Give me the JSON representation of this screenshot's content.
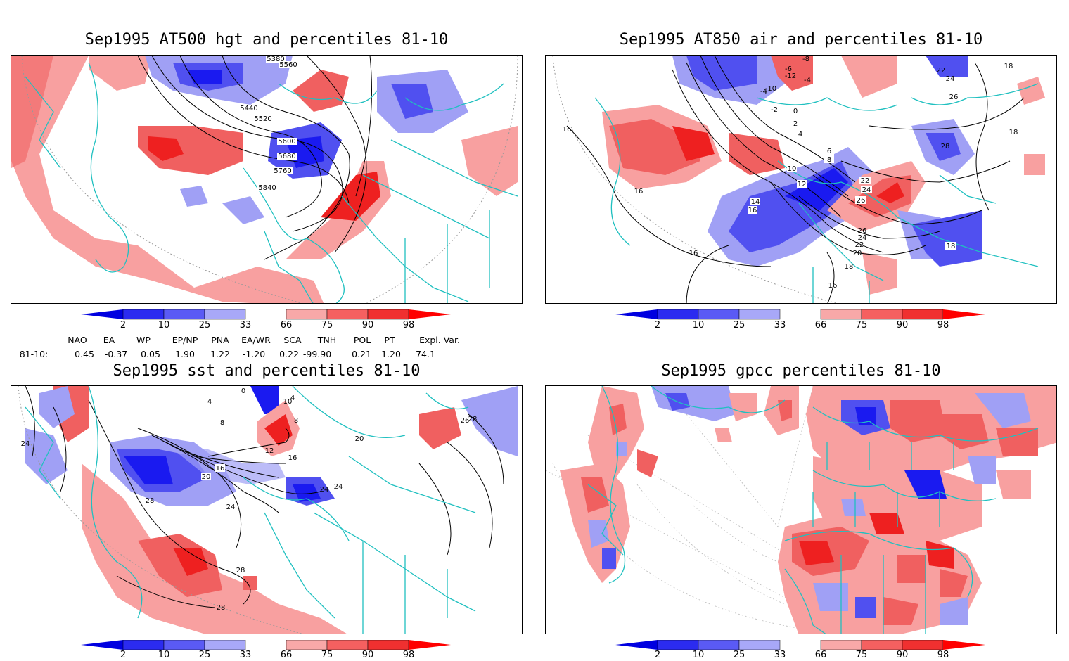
{
  "panels": [
    {
      "title": "Sep1995 AT500 hgt and percentiles 81-10",
      "contour_labels": [
        "5380",
        "5560",
        "5440",
        "5520",
        "5600",
        "5680",
        "5760",
        "5840"
      ]
    },
    {
      "title": "Sep1995 AT850 air and percentiles 81-10",
      "contour_labels": [
        "-8",
        "-6",
        "-4",
        "-12",
        "-10",
        "-4",
        "-2",
        "0",
        "2",
        "4",
        "6",
        "8",
        "10",
        "12",
        "14",
        "16",
        "16",
        "16",
        "16",
        "16",
        "18",
        "18",
        "18",
        "20",
        "22",
        "24",
        "26",
        "22",
        "24",
        "26",
        "28",
        "26",
        "24",
        "22",
        "18"
      ]
    },
    {
      "title": "Sep1995 sst and percentiles 81-10",
      "contour_labels": [
        "4",
        "0",
        "10",
        "4",
        "8",
        "8",
        "12",
        "16",
        "16",
        "20",
        "24",
        "24",
        "24",
        "28",
        "28",
        "28",
        "24",
        "20",
        "26",
        "28"
      ]
    },
    {
      "title": "Sep1995 gpcc percentiles 81-10",
      "contour_labels": []
    }
  ],
  "colorbar": {
    "labels": [
      "2",
      "10",
      "25",
      "33",
      "66",
      "75",
      "90",
      "98"
    ],
    "colors": {
      "low_extreme": "#0000e0",
      "b1": "#2b2bf0",
      "b2": "#5a5af5",
      "b3": "#a8a8f8",
      "r1": "#f8a8a8",
      "r2": "#f56060",
      "r3": "#f03030",
      "high_extreme": "#ff0000"
    }
  },
  "indices": {
    "headers": [
      "NAO",
      "EA",
      "WP",
      "EP/NP",
      "PNA",
      "EA/WR",
      "SCA",
      "TNH",
      "POL",
      "PT",
      "Expl. Var."
    ],
    "row_label": "81-10:",
    "values": [
      "0.45",
      "-0.37",
      "0.05",
      "1.90",
      "1.22",
      "-1.20",
      "0.22",
      "-99.90",
      "0.21",
      "1.20",
      "74.1"
    ]
  },
  "map_colors": {
    "coast": "#20c0c0",
    "contour": "#000000",
    "blue_strong": "#1a1af0",
    "blue_mid": "#5050f0",
    "blue_light": "#a0a0f5",
    "red_light": "#f8a0a0",
    "red_mid": "#f06060",
    "red_strong": "#ee2020"
  }
}
